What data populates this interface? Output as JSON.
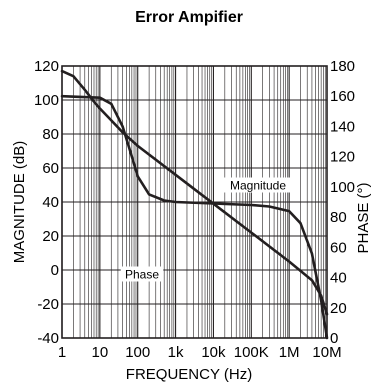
{
  "chart_data": {
    "type": "line",
    "title": "Error Ampifier",
    "xlabel": "FREQUENCY (Hz)",
    "ylabel": "MAGNITUDE (dB)",
    "y2label": "PHASE (°)",
    "xscale": "log",
    "xlim": [
      1,
      10000000
    ],
    "ylim": [
      -40,
      120
    ],
    "y2lim": [
      0,
      180
    ],
    "grid": true,
    "x_ticks": [
      {
        "value": 1,
        "label": "1"
      },
      {
        "value": 10,
        "label": "10"
      },
      {
        "value": 100,
        "label": "100"
      },
      {
        "value": 1000,
        "label": "1k"
      },
      {
        "value": 10000,
        "label": "10k"
      },
      {
        "value": 100000,
        "label": "100K"
      },
      {
        "value": 1000000,
        "label": "1M"
      },
      {
        "value": 10000000,
        "label": "10M"
      }
    ],
    "y_ticks": [
      {
        "value": 120,
        "label": "120"
      },
      {
        "value": 100,
        "label": "100"
      },
      {
        "value": 80,
        "label": "80"
      },
      {
        "value": 60,
        "label": "60"
      },
      {
        "value": 40,
        "label": "40"
      },
      {
        "value": 20,
        "label": "20"
      },
      {
        "value": 0,
        "label": "0"
      },
      {
        "value": -20,
        "label": "-20"
      },
      {
        "value": -40,
        "label": "-40"
      }
    ],
    "y2_ticks": [
      {
        "value": 180,
        "label": "180"
      },
      {
        "value": 160,
        "label": "160"
      },
      {
        "value": 140,
        "label": "140"
      },
      {
        "value": 120,
        "label": "120"
      },
      {
        "value": 100,
        "label": "100"
      },
      {
        "value": 80,
        "label": "80"
      },
      {
        "value": 60,
        "label": "60"
      },
      {
        "value": 40,
        "label": "40"
      },
      {
        "value": 20,
        "label": "20"
      },
      {
        "value": 0,
        "label": "0"
      }
    ],
    "series": [
      {
        "name": "Magnitude",
        "axis": "left",
        "x": [
          1,
          2,
          4,
          7,
          10,
          20,
          40,
          100,
          1000,
          10000,
          100000,
          1000000,
          4000000,
          7000000,
          10000000
        ],
        "y": [
          117,
          114,
          106,
          99,
          95,
          88,
          81,
          73,
          56,
          39,
          22,
          5,
          -6,
          -15,
          -26
        ]
      },
      {
        "name": "Phase",
        "axis": "right",
        "x": [
          1,
          10,
          20,
          40,
          70,
          100,
          200,
          500,
          1000,
          10000,
          100000,
          300000,
          1000000,
          2000000,
          4000000,
          7000000,
          10000000
        ],
        "y": [
          160,
          159,
          155,
          140,
          120,
          107,
          95,
          91,
          90,
          89,
          88,
          87,
          84,
          76,
          56,
          25,
          0
        ]
      }
    ],
    "annotations": [
      {
        "text": "Magnitude",
        "series": "Magnitude"
      },
      {
        "text": "Phase",
        "series": "Phase"
      }
    ]
  }
}
